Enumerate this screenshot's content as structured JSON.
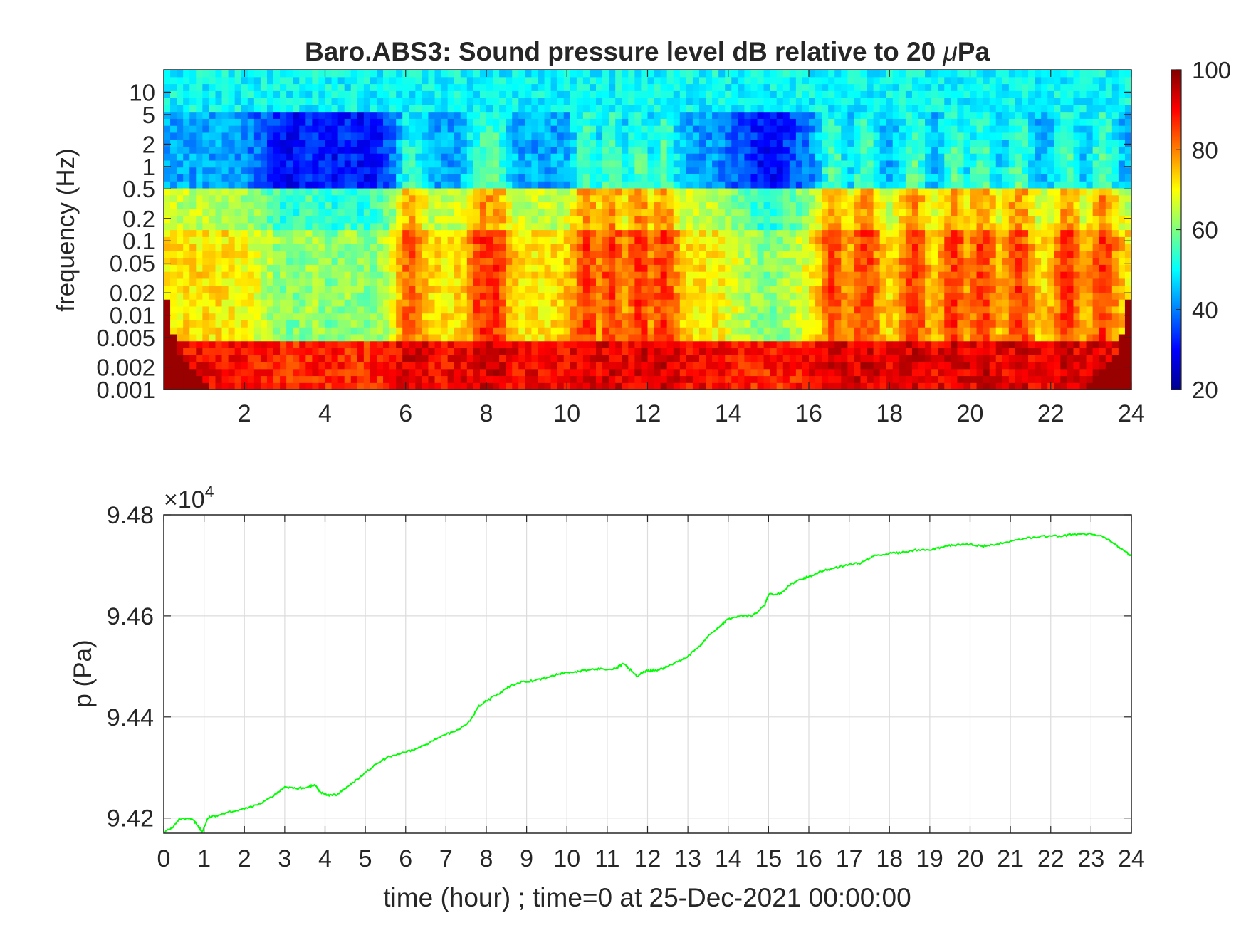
{
  "chart_data": [
    {
      "type": "heatmap",
      "title": "Baro.ABS3: Sound pressure level dB relative to 20 μPa",
      "title_main": "Baro.ABS3: Sound pressure level dB relative to 20 ",
      "title_mu": "μ",
      "title_unit": "Pa",
      "ylabel": "frequency (Hz)",
      "xlabel": "",
      "xlim": [
        0,
        24
      ],
      "x_ticks": [
        2,
        4,
        6,
        8,
        10,
        12,
        14,
        16,
        18,
        20,
        22,
        24
      ],
      "x_tick_labels": [
        "2",
        "4",
        "6",
        "8",
        "10",
        "12",
        "14",
        "16",
        "18",
        "20",
        "22",
        "24"
      ],
      "ylim": [
        0.001,
        20
      ],
      "yscale": "log",
      "y_ticks": [
        0.001,
        0.002,
        0.005,
        0.01,
        0.02,
        0.05,
        0.1,
        0.2,
        0.5,
        1,
        2,
        5,
        10
      ],
      "y_tick_labels": [
        "0.001",
        "0.002",
        "0.005",
        "0.01",
        "0.02",
        "0.05",
        "0.1",
        "0.2",
        "0.5",
        "1",
        "2",
        "5",
        "10"
      ],
      "colormap": "jet",
      "clim": [
        20,
        100
      ],
      "colorbar_ticks": [
        20,
        40,
        60,
        80,
        100
      ],
      "colorbar_tick_labels": [
        "20",
        "40",
        "60",
        "80",
        "100"
      ],
      "colorbar_position": "right",
      "bands": [
        {
          "f_range": [
            5,
            20
          ],
          "level_db": 50
        },
        {
          "f_range": [
            0.5,
            5
          ],
          "level_db": 43
        },
        {
          "f_range": [
            0.15,
            0.5
          ],
          "level_db": 65
        },
        {
          "f_range": [
            0.005,
            0.15
          ],
          "level_db": 72
        },
        {
          "f_range": [
            0.001,
            0.005
          ],
          "level_db": 90
        }
      ],
      "high_activity_hours": [
        6.1,
        7.9,
        8.2,
        10.5,
        11.1,
        11.8,
        12.4,
        16.6,
        17.4,
        18.6,
        19.6,
        20.3,
        21.2,
        22.4,
        23.3
      ],
      "quiet_hours": [
        3.2,
        4.2,
        5.0,
        15.0
      ]
    },
    {
      "type": "line",
      "title": "",
      "ylabel": "p (Pa)",
      "xlabel": "time (hour) ; time=0 at 25-Dec-2021 00:00:00",
      "xlim": [
        0,
        24
      ],
      "x_ticks": [
        0,
        1,
        2,
        3,
        4,
        5,
        6,
        7,
        8,
        9,
        10,
        11,
        12,
        13,
        14,
        15,
        16,
        17,
        18,
        19,
        20,
        21,
        22,
        23,
        24
      ],
      "x_tick_labels": [
        "0",
        "1",
        "2",
        "3",
        "4",
        "5",
        "6",
        "7",
        "8",
        "9",
        "10",
        "11",
        "12",
        "13",
        "14",
        "15",
        "16",
        "17",
        "18",
        "19",
        "20",
        "21",
        "22",
        "23",
        "24"
      ],
      "ylim": [
        94170,
        94800
      ],
      "y_ticks": [
        94200,
        94400,
        94600,
        94800
      ],
      "y_tick_labels": [
        "9.42",
        "9.44",
        "9.46",
        "9.48"
      ],
      "exponent_prefix": "×10",
      "exponent_power": "4",
      "grid": true,
      "line_color": "#00ff00",
      "series": [
        {
          "x": [
            0,
            0.2,
            0.4,
            0.7,
            0.85,
            0.95,
            1.1,
            1.3,
            1.6,
            2.0,
            2.4,
            2.8,
            3.0,
            3.3,
            3.6,
            3.75,
            3.9,
            4.05,
            4.3,
            4.5,
            4.7,
            5.0,
            5.3,
            5.6,
            6.0,
            6.3,
            6.6,
            7.0,
            7.3,
            7.6,
            7.8,
            8.0,
            8.3,
            8.6,
            8.9,
            9.2,
            9.5,
            9.8,
            10.0,
            10.3,
            10.6,
            10.9,
            11.2,
            11.4,
            11.6,
            11.75,
            11.9,
            12.1,
            12.3,
            12.5,
            12.8,
            13.0,
            13.3,
            13.5,
            13.8,
            14.0,
            14.3,
            14.6,
            14.9,
            15.0,
            15.3,
            15.5,
            15.8,
            16.0,
            16.3,
            16.6,
            17.0,
            17.3,
            17.6,
            18.0,
            18.3,
            18.6,
            19.0,
            19.3,
            19.6,
            20.0,
            20.3,
            20.6,
            21.0,
            21.3,
            21.6,
            22.0,
            22.3,
            22.6,
            23.0,
            23.3,
            23.6,
            23.8,
            24.0
          ],
          "y": [
            94172,
            94180,
            94198,
            94198,
            94185,
            94172,
            94200,
            94205,
            94212,
            94218,
            94228,
            94248,
            94262,
            94258,
            94262,
            94265,
            94250,
            94245,
            94246,
            94258,
            94270,
            94290,
            94308,
            94322,
            94330,
            94338,
            94350,
            94365,
            94375,
            94392,
            94420,
            94432,
            94445,
            94462,
            94470,
            94472,
            94478,
            94485,
            94488,
            94490,
            94494,
            94495,
            94496,
            94505,
            94492,
            94480,
            94490,
            94492,
            94494,
            94500,
            94512,
            94520,
            94540,
            94560,
            94580,
            94594,
            94600,
            94600,
            94620,
            94642,
            94645,
            94660,
            94672,
            94678,
            94688,
            94694,
            94702,
            94705,
            94718,
            94724,
            94725,
            94730,
            94730,
            94736,
            94740,
            94742,
            94738,
            94740,
            94748,
            94752,
            94756,
            94758,
            94758,
            94762,
            94762,
            94756,
            94742,
            94730,
            94718
          ]
        }
      ]
    }
  ]
}
